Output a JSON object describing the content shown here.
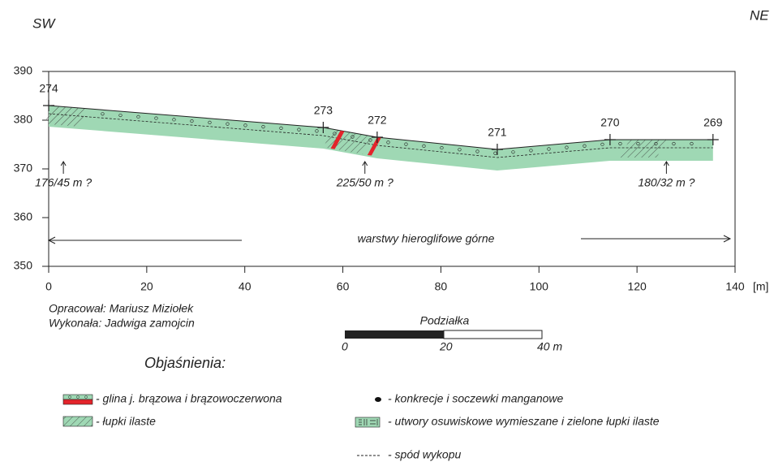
{
  "header": {
    "left": "SW",
    "right": "NE"
  },
  "profile": {
    "xlim": [
      0,
      140
    ],
    "ylim": [
      350,
      390
    ],
    "xticks": [
      0,
      20,
      40,
      60,
      80,
      100,
      120,
      140
    ],
    "yticks": [
      350,
      360,
      370,
      380,
      390
    ],
    "x_unit": "[m]",
    "stations": [
      {
        "label": "274",
        "x": 0,
        "elevation": 383
      },
      {
        "label": "273",
        "x": 56,
        "elevation": 378.5
      },
      {
        "label": "272",
        "x": 67,
        "elevation": 376.5
      },
      {
        "label": "271",
        "x": 91.5,
        "elevation": 374
      },
      {
        "label": "270",
        "x": 114.5,
        "elevation": 376
      },
      {
        "label": "269",
        "x": 135.5,
        "elevation": 376
      }
    ],
    "dips": [
      {
        "label": "176/45 m ?",
        "x": 3
      },
      {
        "label": "225/50 m ?",
        "x": 64.5
      },
      {
        "label": "180/32 m ?",
        "x": 126
      }
    ],
    "formation": "warstwy hieroglifowe górne"
  },
  "credits": [
    "Opracował: Mariusz Miziołek",
    "Wykonała: Jadwiga zamojcin"
  ],
  "scale": {
    "title": "Podziałka",
    "ticks": [
      "0",
      "20",
      "40 m"
    ]
  },
  "legend": {
    "title": "Objaśnienia:",
    "items": [
      "- glina j. brązowa i brązowoczerwona",
      "- łupki ilaste",
      "- konkrecje i soczewki manganowe",
      "- utwory osuwiskowe wymieszane i zielone łupki ilaste",
      "- spód wykopu"
    ]
  }
}
